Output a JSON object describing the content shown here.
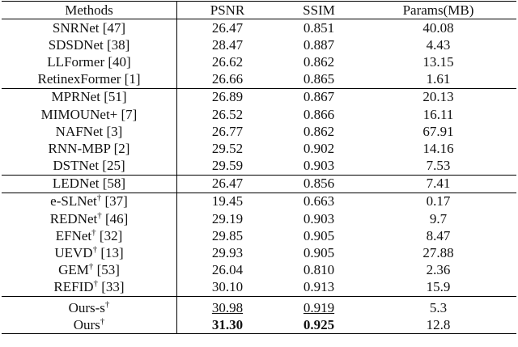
{
  "table": {
    "header": [
      "Methods",
      "PSNR",
      "SSIM",
      "Params(MB)"
    ],
    "groups": [
      {
        "rows": [
          [
            "SNRNet [47]",
            "26.47",
            "0.851",
            "40.08"
          ],
          [
            "SDSDNet [38]",
            "28.47",
            "0.887",
            "4.43"
          ],
          [
            "LLFormer [40]",
            "26.62",
            "0.862",
            "13.15"
          ],
          [
            "RetinexFormer [1]",
            "26.66",
            "0.865",
            "1.61"
          ]
        ]
      },
      {
        "rows": [
          [
            "MPRNet [51]",
            "26.89",
            "0.867",
            "20.13"
          ],
          [
            "MIMOUNet+ [7]",
            "26.52",
            "0.866",
            "16.11"
          ],
          [
            "NAFNet [3]",
            "26.77",
            "0.862",
            "67.91"
          ],
          [
            "RNN-MBP [2]",
            "29.52",
            "0.902",
            "14.16"
          ],
          [
            "DSTNet [25]",
            "29.59",
            "0.903",
            "7.53"
          ]
        ]
      },
      {
        "rows": [
          [
            "LEDNet [58]",
            "26.47",
            "0.856",
            "7.41"
          ]
        ]
      },
      {
        "rows": [
          [
            "e-SLNet† [37]",
            "19.45",
            "0.663",
            "0.17"
          ],
          [
            "REDNet† [46]",
            "29.19",
            "0.903",
            "9.7"
          ],
          [
            "EFNet† [32]",
            "29.85",
            "0.905",
            "8.47"
          ],
          [
            "UEVD† [13]",
            "29.93",
            "0.905",
            "27.88"
          ],
          [
            "GEM† [53]",
            "26.04",
            "0.810",
            "2.36"
          ],
          [
            "REFID† [33]",
            "30.10",
            "0.913",
            "15.9"
          ]
        ]
      },
      {
        "rows": [
          [
            "Ours-s†",
            "30.98",
            "0.919",
            "5.3"
          ],
          [
            "Ours†",
            "31.30",
            "0.925",
            "12.8"
          ]
        ]
      }
    ],
    "underline": [
      "table.groups.4.rows.0.1",
      "table.groups.4.rows.0.2"
    ],
    "bold": [
      "table.groups.4.rows.1.1",
      "table.groups.4.rows.1.2"
    ]
  }
}
